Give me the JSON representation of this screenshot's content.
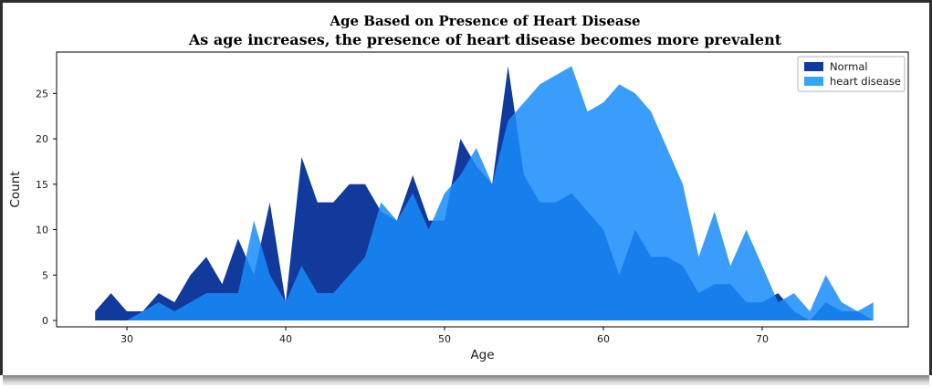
{
  "figure": {
    "title_line1": "Age Based on Presence of Heart Disease",
    "title_line2": "As age increases, the presence of heart disease becomes more prevalent"
  },
  "chart_data": {
    "type": "area",
    "title": "Age Based on Presence of Heart Disease",
    "subtitle": "As age increases, the presence of heart disease becomes more prevalent",
    "xlabel": "Age",
    "ylabel": "Count",
    "grid": false,
    "legend_position": "upper right",
    "x_ticks": [
      30,
      40,
      50,
      60,
      70
    ],
    "y_ticks": [
      0,
      5,
      10,
      15,
      20,
      25
    ],
    "xlim": [
      25.6,
      79.2
    ],
    "ylim": [
      0,
      29.6
    ],
    "x": [
      28,
      29,
      30,
      31,
      32,
      33,
      34,
      35,
      36,
      37,
      38,
      39,
      40,
      41,
      42,
      43,
      44,
      45,
      46,
      47,
      48,
      49,
      50,
      51,
      52,
      53,
      54,
      55,
      56,
      57,
      58,
      59,
      60,
      61,
      62,
      63,
      64,
      65,
      66,
      67,
      68,
      69,
      70,
      71,
      72,
      73,
      74,
      75,
      76,
      77
    ],
    "series": [
      {
        "name": "Normal",
        "color": "#123a9c",
        "fill_opacity": 1.0,
        "values": [
          1,
          3,
          1,
          1,
          3,
          2,
          5,
          7,
          4,
          9,
          5,
          13,
          2,
          18,
          13,
          13,
          15,
          15,
          12,
          11,
          16,
          11,
          11,
          20,
          17,
          15,
          28,
          16,
          13,
          13,
          14,
          12,
          10,
          5,
          10,
          7,
          7,
          6,
          3,
          4,
          4,
          2,
          2,
          3,
          1,
          0,
          2,
          1,
          1,
          0
        ]
      },
      {
        "name": "heart disease",
        "color": "#3aa5f5",
        "fill_base": "#198cfa",
        "fill_opacity": 0.85,
        "values": [
          0,
          0,
          0,
          1,
          2,
          1,
          2,
          3,
          3,
          3,
          11,
          5,
          2,
          6,
          3,
          3,
          5,
          7,
          13,
          11,
          14,
          10,
          14,
          16,
          19,
          15,
          22,
          24,
          26,
          27,
          28,
          23,
          24,
          26,
          25,
          23,
          19,
          15,
          7,
          12,
          6,
          10,
          6,
          2,
          3,
          1,
          5,
          2,
          1,
          2
        ]
      }
    ],
    "legend": {
      "entries": [
        {
          "label": "Normal",
          "color": "#123a9c"
        },
        {
          "label": "heart disease",
          "color": "#3aa5f5"
        }
      ]
    }
  }
}
